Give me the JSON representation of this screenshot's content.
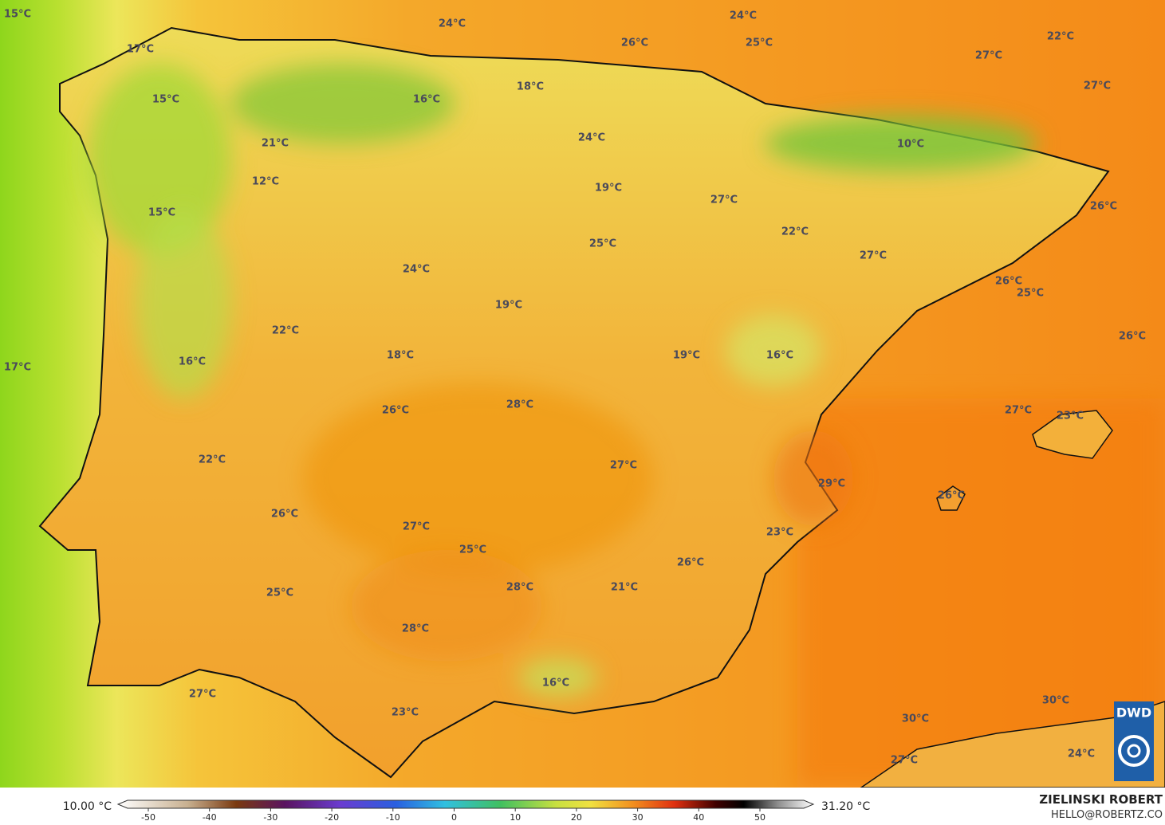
{
  "map": {
    "labels": [
      "15°C",
      "24°C",
      "24°C",
      "25°C",
      "26°C",
      "22°C",
      "27°C",
      "27°C",
      "17°C",
      "15°C",
      "16°C",
      "18°C",
      "24°C",
      "21°C",
      "10°C",
      "12°C",
      "19°C",
      "27°C",
      "15°C",
      "26°C",
      "22°C",
      "25°C",
      "27°C",
      "24°C",
      "26°C",
      "25°C",
      "19°C",
      "22°C",
      "26°C",
      "17°C",
      "18°C",
      "19°C",
      "16°C",
      "16°C",
      "26°C",
      "28°C",
      "27°C",
      "23°C",
      "22°C",
      "27°C",
      "29°C",
      "26°C",
      "26°C",
      "27°C",
      "23°C",
      "25°C",
      "26°C",
      "21°C",
      "28°C",
      "25°C",
      "28°C",
      "16°C",
      "27°C",
      "23°C",
      "30°C",
      "30°C",
      "24°C",
      "27°C"
    ]
  },
  "colorbar": {
    "min_label": "10.00 °C",
    "max_label": "31.20 °C",
    "ticks": [
      -50,
      -40,
      -30,
      -20,
      -10,
      0,
      10,
      20,
      30,
      40,
      50
    ]
  },
  "credit": {
    "author": "ZIELINSKI ROBERT",
    "contact": "HELLO@ROBERTZ.CO",
    "logo": "DWD"
  }
}
